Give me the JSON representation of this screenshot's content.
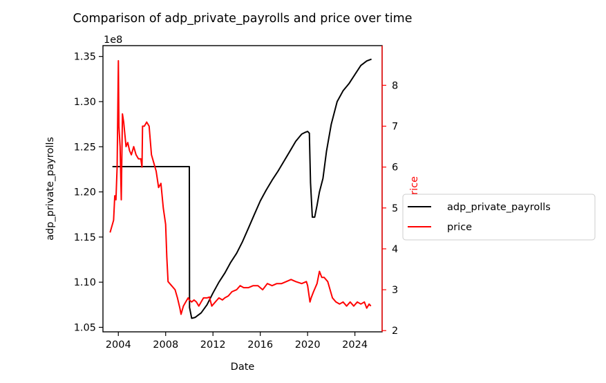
{
  "chart_data": {
    "type": "line",
    "title": "Comparison of adp_private_payrolls and price over time",
    "xlabel": "Date",
    "ylabel_left": "adp_private_payrolls",
    "ylabel_right": "price",
    "left_axis_offset": "1e8",
    "x_ticks": [
      "2004",
      "2008",
      "2012",
      "2016",
      "2020",
      "2024"
    ],
    "x_tick_values": [
      2004,
      2008,
      2012,
      2016,
      2020,
      2024
    ],
    "xlim": [
      2002.7,
      2026.3
    ],
    "left_ticks": [
      "1.05",
      "1.10",
      "1.15",
      "1.20",
      "1.25",
      "1.30",
      "1.35"
    ],
    "left_tick_values": [
      1.05,
      1.1,
      1.15,
      1.2,
      1.25,
      1.3,
      1.35
    ],
    "ylim_left": [
      1.045,
      1.362
    ],
    "right_ticks": [
      "2",
      "3",
      "4",
      "5",
      "6",
      "7",
      "8"
    ],
    "right_tick_values": [
      2,
      3,
      4,
      5,
      6,
      7,
      8
    ],
    "ylim_right": [
      1.97,
      8.97
    ],
    "grid": false,
    "legend_position": "outside-right",
    "series": [
      {
        "name": "adp_private_payrolls",
        "axis": "left",
        "color": "#000000",
        "points": [
          [
            2003.5,
            1.228
          ],
          [
            2010.0,
            1.228
          ],
          [
            2010.02,
            1.072
          ],
          [
            2010.2,
            1.06
          ],
          [
            2010.5,
            1.061
          ],
          [
            2011.0,
            1.066
          ],
          [
            2011.5,
            1.075
          ],
          [
            2012.0,
            1.088
          ],
          [
            2012.5,
            1.1
          ],
          [
            2013.0,
            1.11
          ],
          [
            2013.5,
            1.122
          ],
          [
            2014.0,
            1.132
          ],
          [
            2014.5,
            1.145
          ],
          [
            2015.0,
            1.16
          ],
          [
            2015.5,
            1.175
          ],
          [
            2016.0,
            1.19
          ],
          [
            2016.5,
            1.202
          ],
          [
            2017.0,
            1.213
          ],
          [
            2017.5,
            1.223
          ],
          [
            2018.0,
            1.234
          ],
          [
            2018.5,
            1.245
          ],
          [
            2019.0,
            1.256
          ],
          [
            2019.5,
            1.264
          ],
          [
            2019.8,
            1.266
          ],
          [
            2020.0,
            1.267
          ],
          [
            2020.15,
            1.265
          ],
          [
            2020.25,
            1.21
          ],
          [
            2020.4,
            1.172
          ],
          [
            2020.6,
            1.172
          ],
          [
            2020.8,
            1.185
          ],
          [
            2021.0,
            1.2
          ],
          [
            2021.3,
            1.215
          ],
          [
            2021.6,
            1.245
          ],
          [
            2022.0,
            1.275
          ],
          [
            2022.5,
            1.3
          ],
          [
            2023.0,
            1.312
          ],
          [
            2023.5,
            1.32
          ],
          [
            2024.0,
            1.33
          ],
          [
            2024.5,
            1.34
          ],
          [
            2024.8,
            1.343
          ],
          [
            2025.0,
            1.345
          ],
          [
            2025.4,
            1.347
          ]
        ]
      },
      {
        "name": "price",
        "axis": "right",
        "color": "#ff0000",
        "points": [
          [
            2003.3,
            4.4
          ],
          [
            2003.4,
            4.5
          ],
          [
            2003.5,
            4.6
          ],
          [
            2003.6,
            4.7
          ],
          [
            2003.7,
            5.3
          ],
          [
            2003.8,
            5.2
          ],
          [
            2003.9,
            6.0
          ],
          [
            2004.0,
            8.6
          ],
          [
            2004.05,
            7.0
          ],
          [
            2004.15,
            6.5
          ],
          [
            2004.25,
            5.2
          ],
          [
            2004.35,
            7.3
          ],
          [
            2004.45,
            7.1
          ],
          [
            2004.55,
            6.8
          ],
          [
            2004.65,
            6.5
          ],
          [
            2004.8,
            6.6
          ],
          [
            2004.95,
            6.4
          ],
          [
            2005.1,
            6.3
          ],
          [
            2005.3,
            6.5
          ],
          [
            2005.5,
            6.3
          ],
          [
            2005.7,
            6.2
          ],
          [
            2005.9,
            6.2
          ],
          [
            2006.0,
            6.0
          ],
          [
            2006.05,
            7.0
          ],
          [
            2006.2,
            7.0
          ],
          [
            2006.4,
            7.1
          ],
          [
            2006.6,
            7.0
          ],
          [
            2006.8,
            6.3
          ],
          [
            2007.0,
            6.1
          ],
          [
            2007.2,
            5.9
          ],
          [
            2007.4,
            5.5
          ],
          [
            2007.6,
            5.6
          ],
          [
            2007.8,
            5.0
          ],
          [
            2008.0,
            4.6
          ],
          [
            2008.1,
            3.8
          ],
          [
            2008.2,
            3.2
          ],
          [
            2008.5,
            3.1
          ],
          [
            2008.8,
            3.0
          ],
          [
            2009.0,
            2.8
          ],
          [
            2009.2,
            2.55
          ],
          [
            2009.3,
            2.4
          ],
          [
            2009.5,
            2.6
          ],
          [
            2009.7,
            2.7
          ],
          [
            2009.9,
            2.8
          ],
          [
            2010.0,
            2.75
          ],
          [
            2010.2,
            2.7
          ],
          [
            2010.4,
            2.75
          ],
          [
            2010.6,
            2.7
          ],
          [
            2010.8,
            2.6
          ],
          [
            2011.0,
            2.7
          ],
          [
            2011.2,
            2.8
          ],
          [
            2011.5,
            2.8
          ],
          [
            2011.7,
            2.82
          ],
          [
            2011.9,
            2.6
          ],
          [
            2012.2,
            2.7
          ],
          [
            2012.5,
            2.8
          ],
          [
            2012.8,
            2.75
          ],
          [
            2013.0,
            2.8
          ],
          [
            2013.3,
            2.85
          ],
          [
            2013.6,
            2.95
          ],
          [
            2014.0,
            3.0
          ],
          [
            2014.3,
            3.1
          ],
          [
            2014.6,
            3.05
          ],
          [
            2015.0,
            3.05
          ],
          [
            2015.4,
            3.1
          ],
          [
            2015.8,
            3.1
          ],
          [
            2016.2,
            3.0
          ],
          [
            2016.6,
            3.15
          ],
          [
            2017.0,
            3.1
          ],
          [
            2017.4,
            3.15
          ],
          [
            2017.8,
            3.15
          ],
          [
            2018.2,
            3.2
          ],
          [
            2018.6,
            3.25
          ],
          [
            2019.0,
            3.2
          ],
          [
            2019.5,
            3.15
          ],
          [
            2019.9,
            3.2
          ],
          [
            2020.0,
            3.1
          ],
          [
            2020.2,
            2.7
          ],
          [
            2020.3,
            2.8
          ],
          [
            2020.5,
            2.95
          ],
          [
            2020.8,
            3.15
          ],
          [
            2021.0,
            3.45
          ],
          [
            2021.2,
            3.3
          ],
          [
            2021.4,
            3.3
          ],
          [
            2021.7,
            3.2
          ],
          [
            2021.9,
            3.0
          ],
          [
            2022.1,
            2.8
          ],
          [
            2022.4,
            2.7
          ],
          [
            2022.7,
            2.65
          ],
          [
            2023.0,
            2.7
          ],
          [
            2023.3,
            2.6
          ],
          [
            2023.6,
            2.7
          ],
          [
            2023.9,
            2.6
          ],
          [
            2024.2,
            2.7
          ],
          [
            2024.5,
            2.65
          ],
          [
            2024.8,
            2.7
          ],
          [
            2025.0,
            2.55
          ],
          [
            2025.2,
            2.65
          ],
          [
            2025.35,
            2.6
          ]
        ]
      }
    ]
  }
}
